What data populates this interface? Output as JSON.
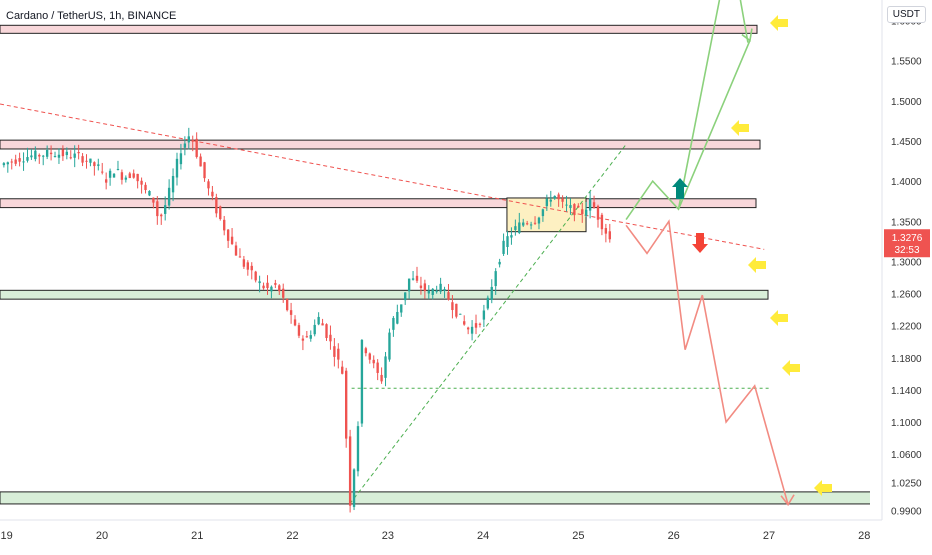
{
  "header": {
    "title": "Cardano / TetherUS, 1h, BINANCE",
    "currency_label": "USDT"
  },
  "price_tag": {
    "price": "1.3276",
    "countdown": "32:53",
    "color": "#ef5350"
  },
  "colors": {
    "bull": "#26a69a",
    "bear": "#ef5350",
    "resistance_fill": "#f8d7da",
    "support_fill": "#d8eed8",
    "consolidation_fill": "#fdf0c2",
    "trendline": "#ef5350",
    "uptrend": "#4caf50",
    "bullish_path": "#8bd17c",
    "bearish_path": "#f28b82",
    "yellow_arrow": "#ffeb3b",
    "teal_arrow": "#00897b",
    "red_arrow": "#f44336"
  },
  "chart_data": {
    "type": "candlestick",
    "title": "Cardano / TetherUS, 1h, BINANCE",
    "x_tick_labels": [
      "19",
      "20",
      "21",
      "22",
      "23",
      "24",
      "25",
      "26",
      "27",
      "28"
    ],
    "x_ticks": [
      19,
      20,
      21,
      22,
      23,
      24,
      25,
      26,
      27,
      28
    ],
    "y_tick_labels": [
      "1.6000",
      "1.5500",
      "1.5000",
      "1.4500",
      "1.4000",
      "1.3500",
      "1.3000",
      "1.2600",
      "1.2200",
      "1.1800",
      "1.1400",
      "1.1000",
      "1.0600",
      "1.0250",
      "0.9900"
    ],
    "y_ticks": [
      1.6,
      1.55,
      1.5,
      1.45,
      1.4,
      1.35,
      1.3,
      1.26,
      1.22,
      1.18,
      1.14,
      1.1,
      1.06,
      1.025,
      0.99
    ],
    "xlim": [
      18.93,
      28.06
    ],
    "ylim": [
      0.978,
      1.6255
    ],
    "last_price": 1.3276,
    "price_series": [
      [
        18.95,
        1.42
      ],
      [
        19.2,
        1.43
      ],
      [
        19.5,
        1.435
      ],
      [
        19.8,
        1.43
      ],
      [
        20.0,
        1.415
      ],
      [
        20.05,
        1.4
      ],
      [
        20.15,
        1.415
      ],
      [
        20.25,
        1.405
      ],
      [
        20.35,
        1.41
      ],
      [
        20.45,
        1.39
      ],
      [
        20.55,
        1.38
      ],
      [
        20.62,
        1.35
      ],
      [
        20.7,
        1.375
      ],
      [
        20.85,
        1.44
      ],
      [
        20.95,
        1.46
      ],
      [
        21.05,
        1.42
      ],
      [
        21.15,
        1.385
      ],
      [
        21.25,
        1.355
      ],
      [
        21.35,
        1.33
      ],
      [
        21.45,
        1.305
      ],
      [
        21.55,
        1.29
      ],
      [
        21.65,
        1.275
      ],
      [
        21.75,
        1.265
      ],
      [
        21.85,
        1.27
      ],
      [
        21.95,
        1.245
      ],
      [
        22.05,
        1.215
      ],
      [
        22.15,
        1.2
      ],
      [
        22.3,
        1.23
      ],
      [
        22.45,
        1.19
      ],
      [
        22.55,
        1.16
      ],
      [
        22.62,
        0.995
      ],
      [
        22.7,
        1.08
      ],
      [
        22.75,
        1.2
      ],
      [
        22.85,
        1.175
      ],
      [
        22.95,
        1.15
      ],
      [
        23.05,
        1.22
      ],
      [
        23.15,
        1.245
      ],
      [
        23.25,
        1.28
      ],
      [
        23.35,
        1.27
      ],
      [
        23.45,
        1.26
      ],
      [
        23.55,
        1.27
      ],
      [
        23.65,
        1.255
      ],
      [
        23.75,
        1.235
      ],
      [
        23.85,
        1.215
      ],
      [
        23.95,
        1.22
      ],
      [
        24.05,
        1.24
      ],
      [
        24.15,
        1.29
      ],
      [
        24.25,
        1.325
      ],
      [
        24.35,
        1.34
      ],
      [
        24.45,
        1.35
      ],
      [
        24.55,
        1.35
      ],
      [
        24.65,
        1.365
      ],
      [
        24.75,
        1.385
      ],
      [
        24.85,
        1.37
      ],
      [
        24.95,
        1.365
      ],
      [
        25.05,
        1.36
      ],
      [
        25.15,
        1.375
      ],
      [
        25.25,
        1.35
      ],
      [
        25.35,
        1.3276
      ]
    ],
    "resistance_zones": [
      {
        "low": 1.584,
        "high": 1.594
      },
      {
        "low": 1.44,
        "high": 1.451
      },
      {
        "low": 1.367,
        "high": 1.378
      }
    ],
    "support_zones": [
      {
        "low": 1.253,
        "high": 1.264
      },
      {
        "low": 0.998,
        "high": 1.013
      }
    ],
    "consolidation_box": {
      "x_start": 24.25,
      "x_end": 25.08,
      "low": 1.337,
      "high": 1.379
    },
    "descending_trendline": [
      [
        18.93,
        1.496
      ],
      [
        26.95,
        1.315
      ]
    ],
    "uptrend_line": [
      [
        22.6,
        0.998
      ],
      [
        25.5,
        1.4456
      ]
    ],
    "horizontal_level": {
      "x_start": 22.62,
      "x_end": 27.0,
      "y": 1.142
    },
    "bullish_projection": [
      [
        25.5,
        1.352
      ],
      [
        25.78,
        1.4
      ],
      [
        26.05,
        1.365
      ],
      [
        26.8,
        1.575
      ],
      [
        26.48,
        1.6255
      ],
      [
        26.7,
        1.6255
      ]
    ],
    "bearish_projection": [
      [
        25.5,
        1.345
      ],
      [
        25.72,
        1.31
      ],
      [
        25.95,
        1.35
      ],
      [
        26.12,
        1.19
      ],
      [
        26.3,
        1.258
      ],
      [
        26.55,
        1.1
      ],
      [
        26.85,
        1.145
      ],
      [
        27.2,
        0.997
      ],
      [
        27.5,
        1.02
      ]
    ]
  }
}
